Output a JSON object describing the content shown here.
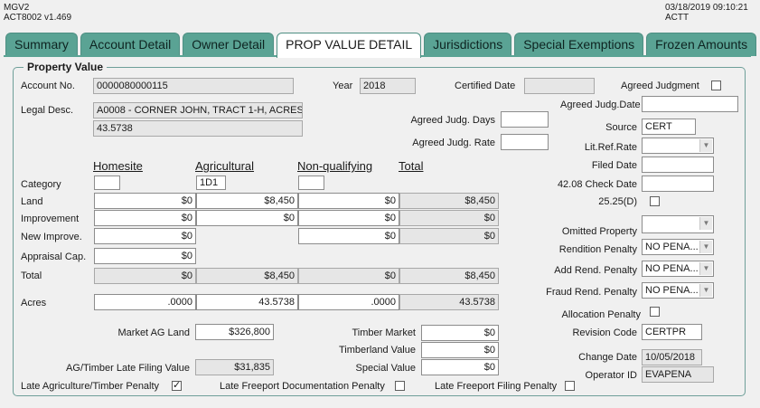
{
  "header": {
    "app": "MGV2",
    "screen": "ACT8002  v1.469",
    "datetime": "03/18/2019 09:10:21",
    "user": "ACTT"
  },
  "tabs": [
    "Summary",
    "Account Detail",
    "Owner Detail",
    "PROP VALUE DETAIL",
    "Jurisdictions",
    "Special Exemptions",
    "Frozen Amounts"
  ],
  "group_title": "Property Value",
  "account": {
    "label": "Account No.",
    "value": "0000080000115"
  },
  "year": {
    "label": "Year",
    "value": "2018"
  },
  "certified": {
    "label": "Certified Date",
    "value": ""
  },
  "agreed_judgment": {
    "label": "Agreed Judgment",
    "checked": ""
  },
  "legal": {
    "label": "Legal Desc.",
    "line1": "A0008 - CORNER JOHN, TRACT 1-H, ACRES",
    "line2": "43.5738"
  },
  "agreed_judg_date": {
    "label": "Agreed Judg.Date",
    "value": ""
  },
  "agreed_judg_days": {
    "label": "Agreed Judg. Days",
    "value": ""
  },
  "agreed_judg_rate": {
    "label": "Agreed Judg. Rate",
    "value": ""
  },
  "source": {
    "label": "Source",
    "value": "CERT"
  },
  "lit_ref_rate": {
    "label": "Lit.Ref.Rate",
    "value": ""
  },
  "filed_date": {
    "label": "Filed Date",
    "value": ""
  },
  "check_date": {
    "label": "42.08 Check Date",
    "value": ""
  },
  "d2525": {
    "label": "25.25(D)",
    "checked": ""
  },
  "columns": {
    "homesite": "Homesite",
    "agricultural": "Agricultural",
    "nonqual": "Non-qualifying",
    "total": "Total"
  },
  "rows": {
    "category": {
      "label": "Category",
      "homesite": "",
      "agricultural": "1D1",
      "nonqual": ""
    },
    "land": {
      "label": "Land",
      "homesite": "$0",
      "agricultural": "$8,450",
      "nonqual": "$0",
      "total": "$8,450"
    },
    "improvement": {
      "label": "Improvement",
      "homesite": "$0",
      "agricultural": "$0",
      "nonqual": "$0",
      "total": "$0"
    },
    "new_improve": {
      "label": "New Improve.",
      "homesite": "$0",
      "nonqual": "$0",
      "total": "$0"
    },
    "appraisal_cap": {
      "label": "Appraisal Cap.",
      "homesite": "$0"
    },
    "total": {
      "label": "Total",
      "homesite": "$0",
      "agricultural": "$8,450",
      "nonqual": "$0",
      "total": "$8,450"
    },
    "acres": {
      "label": "Acres",
      "homesite": ".0000",
      "agricultural": "43.5738",
      "nonqual": ".0000",
      "total": "43.5738"
    }
  },
  "omitted_property": {
    "label": "Omitted Property",
    "value": ""
  },
  "rendition_penalty": {
    "label": "Rendition Penalty",
    "value": "NO PENA..."
  },
  "add_rend_penalty": {
    "label": "Add Rend. Penalty",
    "value": "NO PENA..."
  },
  "fraud_rend_penalty": {
    "label": "Fraud Rend. Penalty",
    "value": "NO PENA..."
  },
  "allocation_penalty": {
    "label": "Allocation Penalty",
    "checked": ""
  },
  "revision_code": {
    "label": "Revision Code",
    "value": "CERTPR"
  },
  "change_date": {
    "label": "Change Date",
    "value": "10/05/2018"
  },
  "operator_id": {
    "label": "Operator ID",
    "value": "EVAPENA"
  },
  "market_ag_land": {
    "label": "Market AG Land",
    "value": "$326,800"
  },
  "timber_market": {
    "label": "Timber Market",
    "value": "$0"
  },
  "timberland_value": {
    "label": "Timberland Value",
    "value": "$0"
  },
  "special_value": {
    "label": "Special Value",
    "value": "$0"
  },
  "ag_timber_late": {
    "label": "AG/Timber Late Filing Value",
    "value": "$31,835"
  },
  "late_ag_penalty": {
    "label": "Late Agriculture/Timber Penalty",
    "checked": "✓"
  },
  "late_freeport_doc": {
    "label": "Late Freeport Documentation Penalty",
    "checked": ""
  },
  "late_freeport_filing": {
    "label": "Late Freeport Filing Penalty",
    "checked": ""
  },
  "colors": {
    "tab": "#5aa394",
    "group_border": "#6e9f99"
  }
}
